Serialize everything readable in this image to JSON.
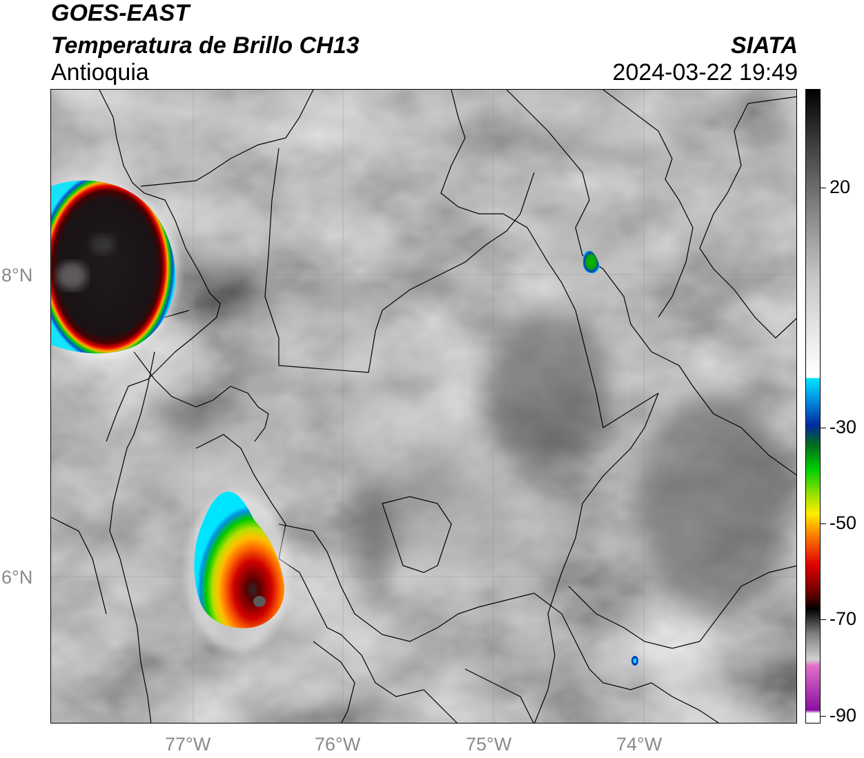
{
  "header": {
    "title_line1": "GOES-EAST",
    "title_line2": "Temperatura de Brillo CH13",
    "title_line3": "Antioquia",
    "organization": "SIATA",
    "timestamp": "2024-03-22 19:49"
  },
  "map": {
    "longitude_labels": [
      "77°W",
      "76°W",
      "75°W",
      "74°W"
    ],
    "latitude_labels": [
      "8°N",
      "6°N"
    ],
    "graticule_color": "#8c8c8c",
    "border_color": "#000000"
  },
  "colorbar": {
    "tick_labels": [
      "20",
      "-30",
      "-50",
      "-70",
      "-90"
    ],
    "colors": {
      "top": "#000000",
      "gray_light": "#ffffff",
      "cyan": "#00e5ff",
      "blue": "#002a9e",
      "green": "#00d000",
      "yellow": "#ffee00",
      "orange": "#ff8a00",
      "red": "#e00000",
      "dark_red": "#5a0000",
      "black": "#000000",
      "magenta": "#e070c8",
      "purple": "#8a10a0"
    }
  }
}
